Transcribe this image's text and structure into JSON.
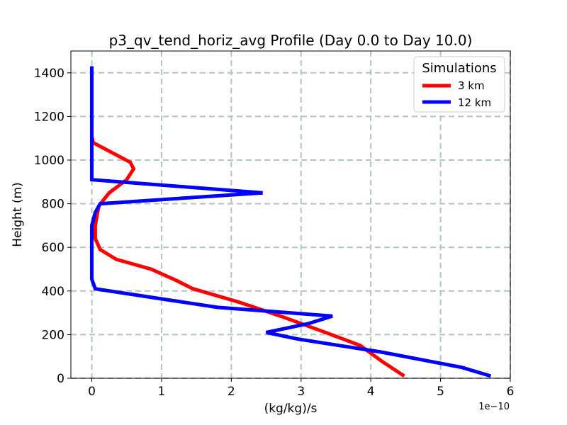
{
  "chart_data": {
    "type": "line",
    "title": "p3_qv_tend_horiz_avg Profile (Day 0.0 to Day 10.0)",
    "xlabel": "(kg/kg)/s",
    "ylabel": "Height (m)",
    "x_offset_label": "1e−10",
    "xlim": [
      -0.3,
      6.0
    ],
    "ylim": [
      0,
      1500
    ],
    "xticks": [
      0,
      1,
      2,
      3,
      4,
      5,
      6
    ],
    "xtick_labels": [
      "0",
      "1",
      "2",
      "3",
      "4",
      "5",
      "6"
    ],
    "yticks": [
      0,
      200,
      400,
      600,
      800,
      1000,
      1200,
      1400
    ],
    "ytick_labels": [
      "0",
      "200",
      "400",
      "600",
      "800",
      "1000",
      "1200",
      "1400"
    ],
    "grid": true,
    "legend": {
      "title": "Simulations",
      "position": "top-right"
    },
    "series": [
      {
        "name": "3 km",
        "color": "#ff0000",
        "x": [
          4.48,
          4.15,
          3.85,
          3.35,
          2.75,
          2.1,
          1.45,
          1.2,
          0.85,
          0.35,
          0.12,
          0.05,
          0.05,
          0.1,
          0.25,
          0.5,
          0.6,
          0.55,
          0.02,
          0.0,
          0.0,
          0.0,
          0.0
        ],
        "y": [
          10,
          80,
          150,
          210,
          280,
          350,
          410,
          450,
          500,
          545,
          590,
          640,
          700,
          790,
          850,
          910,
          960,
          990,
          1080,
          1110,
          1200,
          1300,
          1430
        ]
      },
      {
        "name": "12 km",
        "color": "#0000ff",
        "x": [
          5.72,
          5.3,
          4.15,
          2.95,
          2.5,
          3.1,
          3.45,
          1.8,
          0.05,
          0.0,
          0.0,
          0.0,
          0.0,
          0.05,
          0.12,
          2.45,
          0.0,
          0.0,
          0.0,
          0.0,
          0.0
        ],
        "y": [
          10,
          50,
          120,
          180,
          210,
          250,
          285,
          325,
          410,
          455,
          550,
          640,
          700,
          760,
          800,
          850,
          910,
          1000,
          1200,
          1300,
          1430
        ]
      }
    ]
  }
}
